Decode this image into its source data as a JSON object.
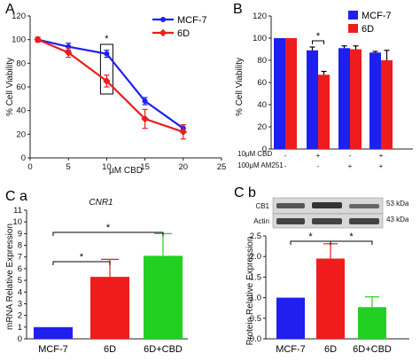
{
  "colors": {
    "blue": "#1f1ff0",
    "red": "#ee1c1c",
    "green": "#22d022",
    "axis": "#222222",
    "error": "#000000"
  },
  "chart_data": [
    {
      "panel": "A",
      "type": "line",
      "xlabel": "µM CBD",
      "ylabel": "% Cell Viability",
      "xlim": [
        0,
        25
      ],
      "ylim": [
        0,
        120
      ],
      "xticks": [
        "0",
        "5",
        "10",
        "15",
        "20",
        "25"
      ],
      "yticks": [
        "0",
        "20",
        "40",
        "60",
        "80",
        "100",
        "120"
      ],
      "x": [
        1,
        5,
        10,
        15,
        20
      ],
      "series": [
        {
          "name": "MCF-7",
          "color": "#1f1ff0",
          "values": [
            100,
            94,
            88,
            48,
            25
          ],
          "errors": [
            2,
            3,
            3,
            3,
            3
          ]
        },
        {
          "name": "6D",
          "color": "#ee1c1c",
          "values": [
            100,
            89,
            65,
            33,
            22
          ],
          "errors": [
            2,
            4,
            5,
            8,
            6
          ]
        }
      ],
      "legend": "top-right",
      "annotations": [
        "*"
      ]
    },
    {
      "panel": "B",
      "type": "bar",
      "ylabel": "% Cell Viability",
      "ylim": [
        0,
        120
      ],
      "yticks": [
        "0",
        "20",
        "40",
        "60",
        "80",
        "100",
        "120"
      ],
      "row_labels": [
        "10µM CBD",
        "100µM AM251"
      ],
      "groups": [
        {
          "cbd": "-",
          "am251": "-",
          "mcf7": 100,
          "d6": 100,
          "mcf7_err": 0,
          "d6_err": 0
        },
        {
          "cbd": "+",
          "am251": "-",
          "mcf7": 89,
          "d6": 67,
          "mcf7_err": 3,
          "d6_err": 3
        },
        {
          "cbd": "-",
          "am251": "+",
          "mcf7": 91,
          "d6": 90,
          "mcf7_err": 2,
          "d6_err": 3
        },
        {
          "cbd": "+",
          "am251": "+",
          "mcf7": 87,
          "d6": 80,
          "mcf7_err": 1,
          "d6_err": 9
        }
      ],
      "legend": [
        "MCF-7",
        "6D"
      ],
      "annotations": [
        "*"
      ]
    },
    {
      "panel": "C a",
      "type": "bar",
      "title": "CNR1",
      "ylabel": "mRNA Relative Expression",
      "ylim": [
        0,
        11
      ],
      "yticks": [
        "0",
        "1",
        "2",
        "3",
        "4",
        "5",
        "6",
        "7",
        "8",
        "9",
        "10",
        "11"
      ],
      "categories": [
        "MCF-7",
        "6D",
        "6D+CBD"
      ],
      "values": [
        1.0,
        5.3,
        7.1
      ],
      "errors": [
        0,
        1.5,
        1.9
      ],
      "annotations": [
        "*",
        "*"
      ]
    },
    {
      "panel": "C b",
      "type": "bar",
      "ylabel": "Protein Relative Expression",
      "ylim": [
        0,
        2.5
      ],
      "yticks": [
        "0.0",
        "0.5",
        "1.0",
        "1.5",
        "2.0",
        "2.5"
      ],
      "categories": [
        "MCF-7",
        "6D",
        "6D+CBD"
      ],
      "values": [
        1.0,
        1.95,
        0.77
      ],
      "errors": [
        0,
        0.36,
        0.25
      ],
      "blot_labels": [
        "CB1",
        "Actin"
      ],
      "blot_sizes": [
        "53 kDa",
        "43 kDa"
      ],
      "annotations": [
        "*",
        "*"
      ]
    }
  ]
}
